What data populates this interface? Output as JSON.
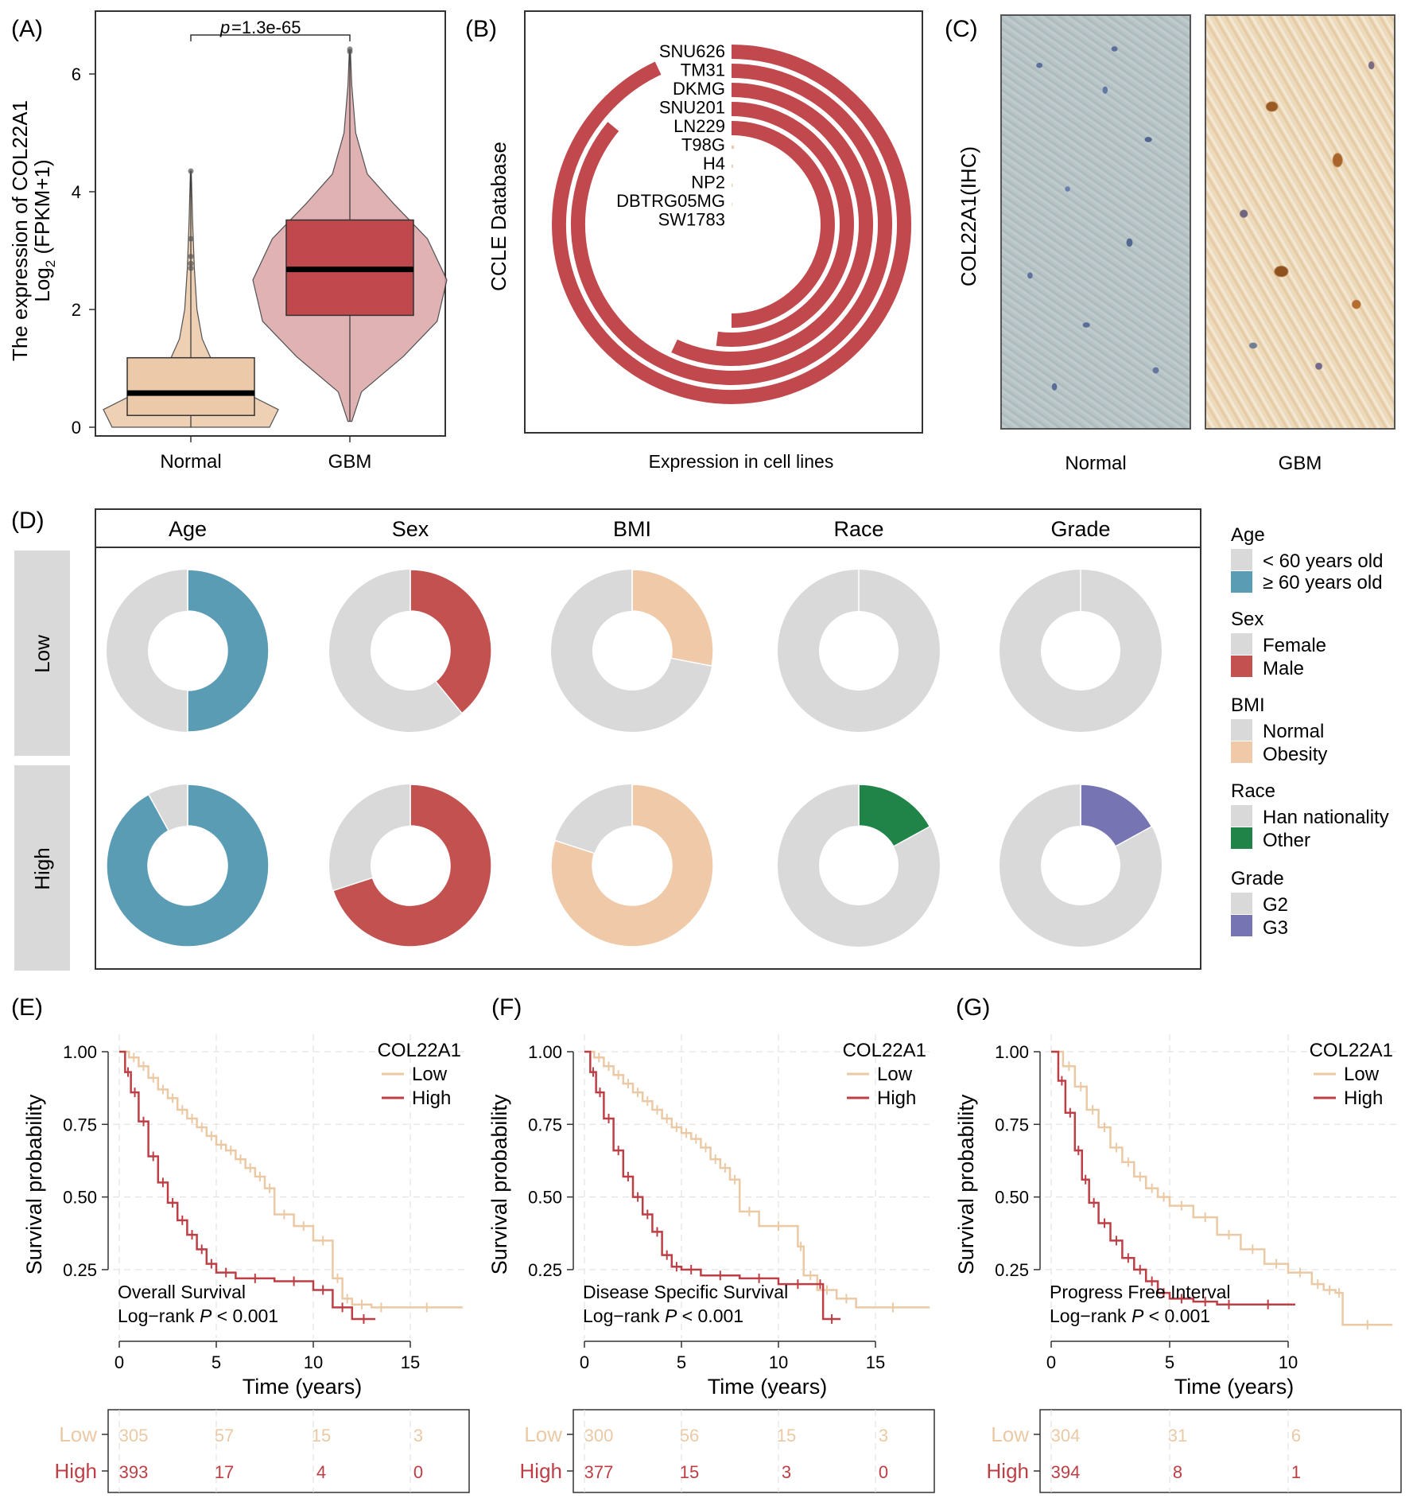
{
  "panel_labels": [
    "(A)",
    "(B)",
    "(C)",
    "(D)",
    "(E)",
    "(F)",
    "(G)"
  ],
  "colors": {
    "normal": "#ecc9a8",
    "gbm": "#c1494e",
    "gbm_violin": "#dba5a8",
    "grey": "#d9d9d9",
    "age": "#5b9cb5",
    "sex": "#c3514f",
    "bmi": "#f0caa8",
    "race": "#208449",
    "grade": "#7774b4",
    "low_km": "#ebc9a4",
    "high_km": "#bd3f45"
  },
  "chart_data": [
    {
      "id": "A",
      "type": "violin_box",
      "ylabel_line1": "The expression of COL22A1",
      "ylabel_line2_pre": "Log",
      "ylabel_line2_sub": "2",
      "ylabel_line2_post": " (FPKM+1)",
      "categories": [
        "Normal",
        "GBM"
      ],
      "ylim": [
        0,
        7
      ],
      "yticks": [
        "0",
        "2",
        "4",
        "6"
      ],
      "pvalue_prefix": "p",
      "pvalue_text": " =1.3e-65",
      "groups": [
        {
          "name": "Normal",
          "q1": 0.2,
          "median": 0.58,
          "q3": 1.18,
          "min": 0.0,
          "max": 4.35,
          "outliers": [
            4.35,
            3.2,
            2.9,
            2.78,
            2.7
          ],
          "violin": [
            [
              0,
              0.9
            ],
            [
              0.3,
              1.0
            ],
            [
              0.6,
              0.6
            ],
            [
              1.0,
              0.28
            ],
            [
              1.5,
              0.13
            ],
            [
              2.0,
              0.07
            ],
            [
              2.7,
              0.04
            ],
            [
              3.5,
              0.02
            ],
            [
              4.35,
              0.005
            ]
          ]
        },
        {
          "name": "GBM",
          "q1": 1.9,
          "median": 2.68,
          "q3": 3.52,
          "min": 0.1,
          "max": 6.4,
          "outliers": [
            6.38,
            6.42
          ],
          "violin": [
            [
              0.1,
              0.02
            ],
            [
              0.6,
              0.12
            ],
            [
              1.2,
              0.55
            ],
            [
              1.8,
              0.9
            ],
            [
              2.5,
              1.0
            ],
            [
              3.2,
              0.8
            ],
            [
              3.8,
              0.45
            ],
            [
              4.3,
              0.18
            ],
            [
              5.0,
              0.06
            ],
            [
              5.8,
              0.02
            ],
            [
              6.4,
              0.005
            ]
          ]
        }
      ]
    },
    {
      "id": "B",
      "type": "radial_bar",
      "ylabel": "CCLE Database",
      "xlabel": "Expression in cell lines",
      "cell_lines": [
        "SNU626",
        "TM31",
        "DKMG",
        "SNU201",
        "LN229",
        "T98G",
        "H4",
        "NP2",
        "DBTRG05MG",
        "SW1783"
      ],
      "values": [
        0.93,
        0.86,
        0.57,
        0.52,
        0.5,
        0.005,
        0.004,
        0.003,
        0.003,
        0.002
      ]
    },
    {
      "id": "C",
      "type": "image_pair",
      "ylabel": "COL22A1(IHC)",
      "labels": [
        "Normal",
        "GBM"
      ]
    },
    {
      "id": "D",
      "type": "donut_grid",
      "columns": [
        "Age",
        "Sex",
        "BMI",
        "Race",
        "Grade"
      ],
      "rows": [
        "Low",
        "High"
      ],
      "fractions": {
        "Low": [
          0.5,
          0.39,
          0.28,
          0.0,
          0.0
        ],
        "High": [
          0.92,
          0.7,
          0.8,
          0.17,
          0.17
        ]
      },
      "legend": [
        {
          "title": "Age",
          "items": [
            "< 60 years old",
            "≥ 60 years old"
          ]
        },
        {
          "title": "Sex",
          "items": [
            "Female",
            "Male"
          ]
        },
        {
          "title": "BMI",
          "items": [
            "Normal",
            "Obesity"
          ]
        },
        {
          "title": "Race",
          "items": [
            "Han nationality",
            "Other"
          ]
        },
        {
          "title": "Grade",
          "items": [
            "G2",
            "G3"
          ]
        }
      ]
    },
    {
      "id": "E",
      "type": "km",
      "title_note": "Overall Survival",
      "logrank_pre": "Log−rank ",
      "logrank_p": "P",
      "logrank_post": " < 0.001",
      "legend_title": "COL22A1",
      "legend_items": [
        "Low",
        "High"
      ],
      "xlabel": "Time (years)",
      "ylabel": "Survival probability",
      "xlim": [
        0,
        18
      ],
      "xticks": [
        "0",
        "5",
        "10",
        "15"
      ],
      "yticks": [
        "0.25",
        "0.50",
        "0.75",
        "1.00"
      ],
      "low": [
        [
          0,
          1
        ],
        [
          0.5,
          0.98
        ],
        [
          1,
          0.95
        ],
        [
          1.5,
          0.91
        ],
        [
          2,
          0.87
        ],
        [
          2.5,
          0.84
        ],
        [
          3,
          0.8
        ],
        [
          3.5,
          0.77
        ],
        [
          4,
          0.74
        ],
        [
          4.5,
          0.71
        ],
        [
          5,
          0.68
        ],
        [
          5.5,
          0.66
        ],
        [
          6,
          0.63
        ],
        [
          6.5,
          0.6
        ],
        [
          7,
          0.57
        ],
        [
          7.5,
          0.53
        ],
        [
          8,
          0.44
        ],
        [
          9,
          0.4
        ],
        [
          10,
          0.35
        ],
        [
          11,
          0.22
        ],
        [
          11.5,
          0.15
        ],
        [
          12,
          0.13
        ],
        [
          13,
          0.12
        ],
        [
          14,
          0.12
        ],
        [
          17.7,
          0.12
        ]
      ],
      "high": [
        [
          0,
          1
        ],
        [
          0.3,
          0.93
        ],
        [
          0.6,
          0.86
        ],
        [
          1,
          0.76
        ],
        [
          1.5,
          0.64
        ],
        [
          2,
          0.55
        ],
        [
          2.5,
          0.48
        ],
        [
          3,
          0.42
        ],
        [
          3.5,
          0.37
        ],
        [
          4,
          0.32
        ],
        [
          4.5,
          0.27
        ],
        [
          5,
          0.24
        ],
        [
          6,
          0.22
        ],
        [
          8,
          0.21
        ],
        [
          10,
          0.18
        ],
        [
          11,
          0.12
        ],
        [
          12,
          0.08
        ],
        [
          13.2,
          0.08
        ]
      ],
      "risk_rows": [
        "Low",
        "High"
      ],
      "risk_low": [
        "305",
        "57",
        "15",
        "3"
      ],
      "risk_high": [
        "393",
        "17",
        "4",
        "0"
      ]
    },
    {
      "id": "F",
      "type": "km",
      "title_note": "Disease Specific Survival",
      "logrank_pre": "Log−rank ",
      "logrank_p": "P",
      "logrank_post": " < 0.001",
      "legend_title": "COL22A1",
      "legend_items": [
        "Low",
        "High"
      ],
      "xlabel": "Time (years)",
      "ylabel": "Survival probability",
      "xlim": [
        0,
        18
      ],
      "xticks": [
        "0",
        "5",
        "10",
        "15"
      ],
      "yticks": [
        "0.25",
        "0.50",
        "0.75",
        "1.00"
      ],
      "low": [
        [
          0,
          1
        ],
        [
          0.5,
          0.98
        ],
        [
          1,
          0.95
        ],
        [
          1.5,
          0.92
        ],
        [
          2,
          0.89
        ],
        [
          2.5,
          0.86
        ],
        [
          3,
          0.83
        ],
        [
          3.5,
          0.8
        ],
        [
          4,
          0.77
        ],
        [
          4.5,
          0.74
        ],
        [
          5,
          0.72
        ],
        [
          5.5,
          0.7
        ],
        [
          6,
          0.67
        ],
        [
          6.5,
          0.63
        ],
        [
          7,
          0.6
        ],
        [
          7.5,
          0.56
        ],
        [
          8,
          0.45
        ],
        [
          9,
          0.4
        ],
        [
          11,
          0.33
        ],
        [
          11.3,
          0.23
        ],
        [
          12,
          0.18
        ],
        [
          13,
          0.15
        ],
        [
          14,
          0.12
        ],
        [
          17.8,
          0.12
        ]
      ],
      "high": [
        [
          0,
          1
        ],
        [
          0.3,
          0.93
        ],
        [
          0.6,
          0.86
        ],
        [
          1,
          0.77
        ],
        [
          1.5,
          0.66
        ],
        [
          2,
          0.57
        ],
        [
          2.5,
          0.5
        ],
        [
          3,
          0.44
        ],
        [
          3.5,
          0.38
        ],
        [
          4,
          0.3
        ],
        [
          4.5,
          0.26
        ],
        [
          5,
          0.25
        ],
        [
          6,
          0.23
        ],
        [
          8,
          0.22
        ],
        [
          10,
          0.2
        ],
        [
          12,
          0.2
        ],
        [
          12.3,
          0.08
        ],
        [
          13.2,
          0.08
        ]
      ],
      "risk_rows": [
        "Low",
        "High"
      ],
      "risk_low": [
        "300",
        "56",
        "15",
        "3"
      ],
      "risk_high": [
        "377",
        "15",
        "3",
        "0"
      ]
    },
    {
      "id": "G",
      "type": "km",
      "title_note": "Progress Free Interval",
      "logrank_pre": "Log−rank ",
      "logrank_p": "P",
      "logrank_post": " < 0.001",
      "legend_title": "COL22A1",
      "legend_items": [
        "Low",
        "High"
      ],
      "xlabel": "Time (years)",
      "ylabel": "Survival probability",
      "xlim": [
        0,
        14.5
      ],
      "xticks": [
        "0",
        "5",
        "10"
      ],
      "yticks": [
        "0.25",
        "0.50",
        "0.75",
        "1.00"
      ],
      "low": [
        [
          0,
          1
        ],
        [
          0.5,
          0.95
        ],
        [
          1,
          0.88
        ],
        [
          1.5,
          0.8
        ],
        [
          2,
          0.74
        ],
        [
          2.5,
          0.67
        ],
        [
          3,
          0.62
        ],
        [
          3.5,
          0.57
        ],
        [
          4,
          0.53
        ],
        [
          4.5,
          0.5
        ],
        [
          5,
          0.47
        ],
        [
          6,
          0.43
        ],
        [
          7,
          0.37
        ],
        [
          8,
          0.32
        ],
        [
          9,
          0.27
        ],
        [
          10,
          0.24
        ],
        [
          11,
          0.2
        ],
        [
          11.5,
          0.18
        ],
        [
          12,
          0.17
        ],
        [
          12.3,
          0.06
        ],
        [
          14.4,
          0.06
        ]
      ],
      "high": [
        [
          0,
          1
        ],
        [
          0.3,
          0.9
        ],
        [
          0.6,
          0.79
        ],
        [
          1,
          0.66
        ],
        [
          1.3,
          0.56
        ],
        [
          1.6,
          0.48
        ],
        [
          2,
          0.41
        ],
        [
          2.5,
          0.35
        ],
        [
          3,
          0.29
        ],
        [
          3.5,
          0.25
        ],
        [
          4,
          0.21
        ],
        [
          4.5,
          0.17
        ],
        [
          5,
          0.15
        ],
        [
          6,
          0.14
        ],
        [
          7,
          0.13
        ],
        [
          8,
          0.13
        ],
        [
          10.3,
          0.13
        ]
      ],
      "risk_rows": [
        "Low",
        "High"
      ],
      "risk_low": [
        "304",
        "31",
        "6"
      ],
      "risk_high": [
        "394",
        "8",
        "1"
      ]
    }
  ]
}
